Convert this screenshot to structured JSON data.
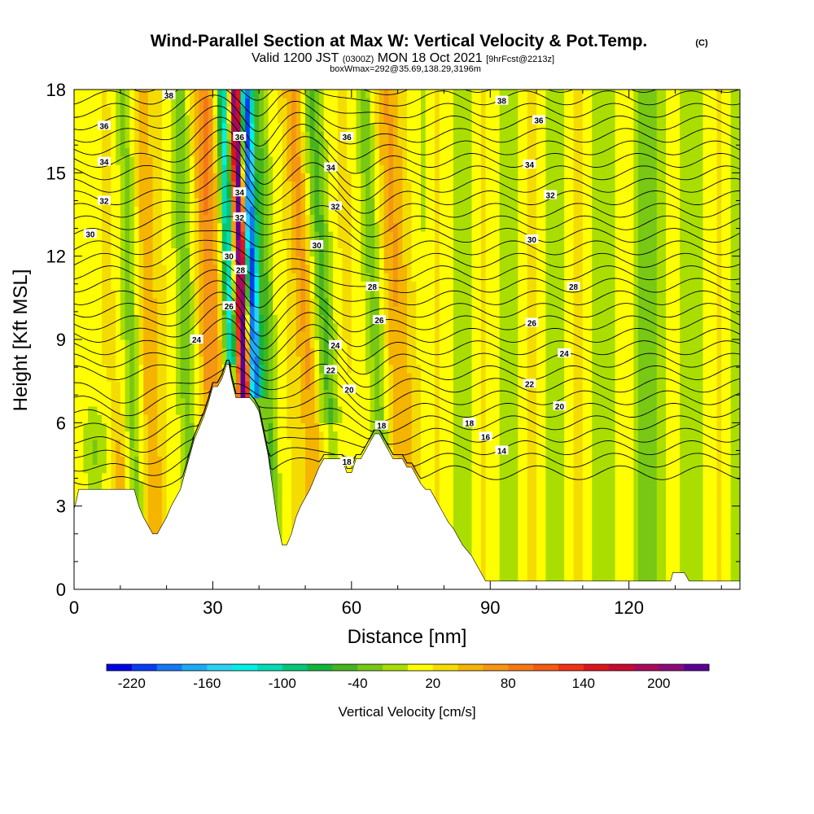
{
  "title": "Wind-Parallel Section at Max W: Vertical Velocity & Pot.Temp.",
  "title_unit": "(C)",
  "subtitle": {
    "valid": "Valid 1200 JST",
    "zulu": "(0300Z)",
    "date": "MON 18 Oct 2021",
    "fcst": "[9hrFcst@2213z]",
    "box": "boxWmax=292@35.69,138.29,3196m"
  },
  "chart_data": {
    "type": "heatmap",
    "xlabel": "Distance [nm]",
    "ylabel": "Height [Kft MSL]",
    "xlim": [
      0,
      144
    ],
    "ylim": [
      0,
      18
    ],
    "x_ticks": [
      0,
      30,
      60,
      90,
      120
    ],
    "y_ticks": [
      0,
      3,
      6,
      9,
      12,
      15,
      18
    ],
    "colorbar": {
      "label": "Vertical Velocity [cm/s]",
      "tick_labels": [
        "-220",
        "-160",
        "-100",
        "-40",
        "20",
        "80",
        "140",
        "200"
      ],
      "colors": [
        "#0000e6",
        "#0a3cf5",
        "#1478f5",
        "#1eaaf5",
        "#28d2f5",
        "#00f0e6",
        "#00dcb4",
        "#00c878",
        "#14b43c",
        "#46b41e",
        "#78c814",
        "#aade00",
        "#ffff00",
        "#f5dc00",
        "#f5b400",
        "#f59614",
        "#f57814",
        "#f55a14",
        "#f03214",
        "#dc141e",
        "#c80a32",
        "#aa0a5a",
        "#8c0a78",
        "#5a0096"
      ],
      "min": -240,
      "max": 240,
      "step": 20
    },
    "terrain_nm_kft": [
      [
        0,
        2.9
      ],
      [
        0.5,
        3.2
      ],
      [
        1,
        3.6
      ],
      [
        3,
        3.6
      ],
      [
        6,
        3.6
      ],
      [
        8,
        3.6
      ],
      [
        11,
        3.6
      ],
      [
        13,
        3.6
      ],
      [
        14,
        3.0
      ],
      [
        15,
        2.6
      ],
      [
        16,
        2.3
      ],
      [
        17,
        2.0
      ],
      [
        18,
        2.0
      ],
      [
        19,
        2.3
      ],
      [
        20,
        2.6
      ],
      [
        21,
        3.0
      ],
      [
        22,
        3.3
      ],
      [
        23,
        3.6
      ],
      [
        24,
        4.2
      ],
      [
        25,
        4.8
      ],
      [
        26,
        5.4
      ],
      [
        27,
        5.8
      ],
      [
        28,
        6.2
      ],
      [
        29,
        6.7
      ],
      [
        30,
        7.3
      ],
      [
        31,
        7.3
      ],
      [
        32,
        7.6
      ],
      [
        33,
        8.1
      ],
      [
        33.5,
        8.1
      ],
      [
        34,
        7.6
      ],
      [
        35,
        6.9
      ],
      [
        36,
        6.9
      ],
      [
        37,
        6.9
      ],
      [
        38,
        6.9
      ],
      [
        39,
        6.7
      ],
      [
        40,
        6.4
      ],
      [
        41,
        5.6
      ],
      [
        42,
        4.8
      ],
      [
        43,
        3.6
      ],
      [
        44,
        2.4
      ],
      [
        45,
        1.6
      ],
      [
        46,
        1.6
      ],
      [
        47,
        2.0
      ],
      [
        48,
        2.6
      ],
      [
        49,
        3.0
      ],
      [
        50,
        3.3
      ],
      [
        51,
        3.6
      ],
      [
        52,
        4.0
      ],
      [
        53,
        4.4
      ],
      [
        54,
        4.7
      ],
      [
        55,
        4.7
      ],
      [
        56,
        4.7
      ],
      [
        57,
        4.7
      ],
      [
        58,
        4.7
      ],
      [
        59,
        4.2
      ],
      [
        60,
        4.2
      ],
      [
        61,
        4.7
      ],
      [
        62,
        4.7
      ],
      [
        63,
        5.0
      ],
      [
        64,
        5.3
      ],
      [
        65,
        5.6
      ],
      [
        66,
        5.6
      ],
      [
        67,
        5.3
      ],
      [
        68,
        5.0
      ],
      [
        69,
        4.7
      ],
      [
        70,
        4.7
      ],
      [
        71,
        4.7
      ],
      [
        72,
        4.4
      ],
      [
        73,
        4.4
      ],
      [
        74,
        4.1
      ],
      [
        75,
        3.8
      ],
      [
        76,
        3.6
      ],
      [
        77,
        3.6
      ],
      [
        78,
        3.3
      ],
      [
        79,
        3.0
      ],
      [
        80,
        2.7
      ],
      [
        81,
        2.4
      ],
      [
        82,
        2.2
      ],
      [
        83,
        1.9
      ],
      [
        84,
        1.6
      ],
      [
        85,
        1.4
      ],
      [
        86,
        1.2
      ],
      [
        87,
        0.9
      ],
      [
        88,
        0.6
      ],
      [
        89,
        0.3
      ],
      [
        90,
        0.3
      ],
      [
        100,
        0.3
      ],
      [
        110,
        0.3
      ],
      [
        120,
        0.3
      ],
      [
        129,
        0.3
      ],
      [
        129.5,
        0.6
      ],
      [
        132,
        0.6
      ],
      [
        133,
        0.3
      ],
      [
        144,
        0.3
      ]
    ],
    "theta_contours": [
      {
        "label": "38",
        "level": 18.0
      },
      {
        "label": "36",
        "level": 16.6
      },
      {
        "label": "34",
        "level": 15.2
      },
      {
        "label": "32",
        "level": 14.0
      },
      {
        "label": "30",
        "level": 12.6
      },
      {
        "label": "28",
        "level": 10.8
      },
      {
        "label": "26",
        "level": 9.6
      },
      {
        "label": "24",
        "level": 8.6
      },
      {
        "label": "22",
        "level": 7.4
      },
      {
        "label": "20",
        "level": 6.6
      },
      {
        "label": "18",
        "level": 5.9
      },
      {
        "label": "16",
        "level": 5.4
      },
      {
        "label": "14",
        "level": 4.9
      }
    ],
    "theta_labels": [
      {
        "text": "38",
        "x": 20.5,
        "y": 17.8
      },
      {
        "text": "36",
        "x": 6.5,
        "y": 16.7
      },
      {
        "text": "34",
        "x": 6.5,
        "y": 15.4
      },
      {
        "text": "32",
        "x": 6.5,
        "y": 14.0
      },
      {
        "text": "30",
        "x": 3.5,
        "y": 12.8
      },
      {
        "text": "24",
        "x": 26.5,
        "y": 9.0
      },
      {
        "text": "36",
        "x": 35.8,
        "y": 16.3
      },
      {
        "text": "34",
        "x": 35.8,
        "y": 14.3
      },
      {
        "text": "32",
        "x": 35.8,
        "y": 13.4
      },
      {
        "text": "30",
        "x": 33.5,
        "y": 12.0
      },
      {
        "text": "28",
        "x": 36.0,
        "y": 11.5
      },
      {
        "text": "26",
        "x": 33.5,
        "y": 10.2
      },
      {
        "text": "36",
        "x": 59.0,
        "y": 16.3
      },
      {
        "text": "34",
        "x": 55.5,
        "y": 15.2
      },
      {
        "text": "32",
        "x": 56.5,
        "y": 13.8
      },
      {
        "text": "30",
        "x": 52.5,
        "y": 12.4
      },
      {
        "text": "28",
        "x": 64.5,
        "y": 10.9
      },
      {
        "text": "26",
        "x": 66.0,
        "y": 9.7
      },
      {
        "text": "24",
        "x": 56.5,
        "y": 8.8
      },
      {
        "text": "22",
        "x": 55.5,
        "y": 7.9
      },
      {
        "text": "20",
        "x": 59.5,
        "y": 7.2
      },
      {
        "text": "18",
        "x": 66.5,
        "y": 5.9
      },
      {
        "text": "18",
        "x": 59.0,
        "y": 4.6
      },
      {
        "text": "38",
        "x": 92.5,
        "y": 17.6
      },
      {
        "text": "36",
        "x": 100.5,
        "y": 16.9
      },
      {
        "text": "34",
        "x": 98.5,
        "y": 15.3
      },
      {
        "text": "32",
        "x": 103.0,
        "y": 14.2
      },
      {
        "text": "30",
        "x": 99.0,
        "y": 12.6
      },
      {
        "text": "28",
        "x": 108.0,
        "y": 10.9
      },
      {
        "text": "26",
        "x": 99.0,
        "y": 9.6
      },
      {
        "text": "24",
        "x": 106.0,
        "y": 8.5
      },
      {
        "text": "22",
        "x": 98.5,
        "y": 7.4
      },
      {
        "text": "20",
        "x": 105.0,
        "y": 6.6
      },
      {
        "text": "18",
        "x": 85.5,
        "y": 6.0
      },
      {
        "text": "16",
        "x": 89.0,
        "y": 5.5
      },
      {
        "text": "14",
        "x": 92.5,
        "y": 5.0
      }
    ]
  }
}
